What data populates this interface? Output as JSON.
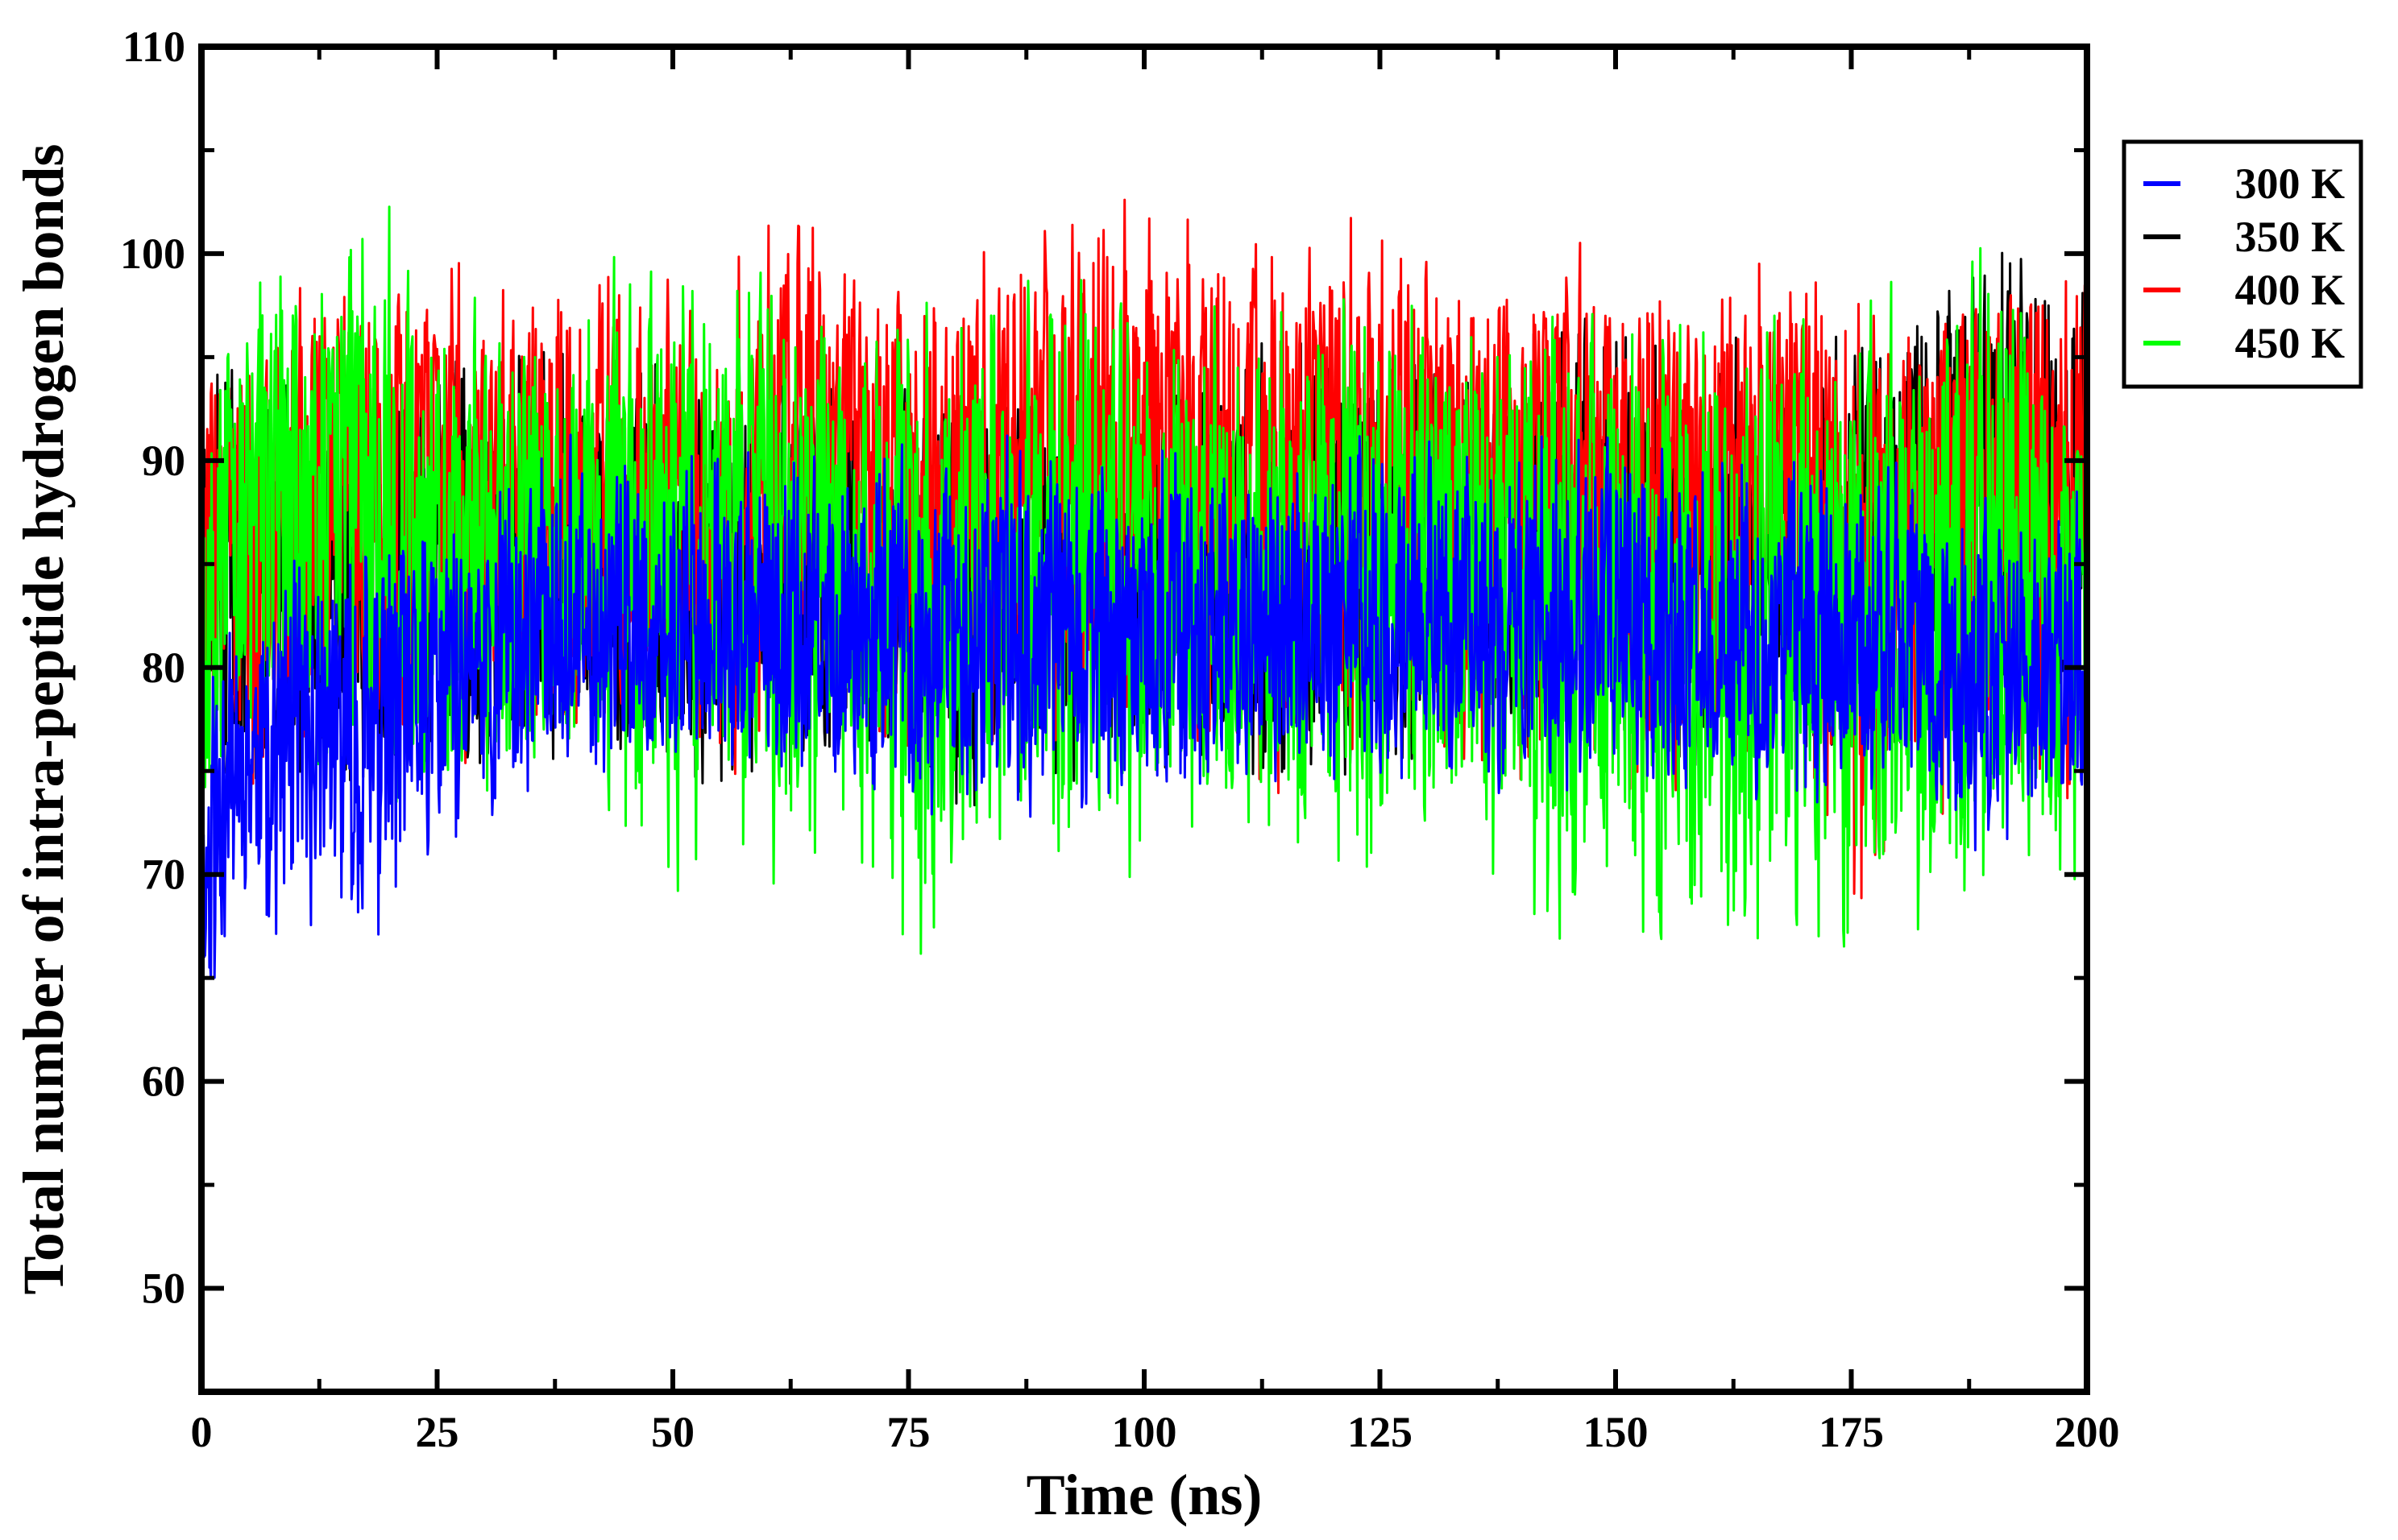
{
  "chart_data": {
    "type": "line",
    "xlabel": "Time (ns)",
    "ylabel": "Total number of intra-peptide hydrogen bonds",
    "xlim": [
      0,
      200
    ],
    "ylim": [
      45,
      110
    ],
    "x_ticks": [
      0,
      25,
      50,
      75,
      100,
      125,
      150,
      175,
      200
    ],
    "y_ticks": [
      50,
      60,
      70,
      80,
      90,
      100,
      110
    ],
    "grid": false,
    "legend": "right",
    "legend_entries": [
      "300 K",
      "350 K",
      "400 K",
      "450 K"
    ],
    "series": [
      {
        "name": "300 K",
        "color": "#0000ff",
        "x": [
          0,
          1,
          2,
          5,
          10,
          15,
          20,
          25,
          30,
          35,
          40,
          50,
          60,
          75,
          90,
          100,
          110,
          125,
          140,
          150,
          160,
          175,
          190,
          200
        ],
        "mean": [
          68,
          72,
          75,
          76,
          77,
          77,
          77,
          79,
          80,
          81,
          81,
          81,
          81,
          81,
          81,
          81,
          81,
          81,
          81,
          81,
          81,
          81,
          80,
          80
        ],
        "min": [
          58,
          61,
          64,
          66,
          66,
          67,
          64,
          69,
          71,
          73,
          74,
          74,
          74,
          72,
          71,
          72,
          73,
          74,
          73,
          74,
          72,
          72,
          70,
          72
        ],
        "max": [
          78,
          80,
          82,
          84,
          86,
          88,
          88,
          89,
          90,
          91,
          92,
          92,
          92,
          92,
          92,
          92,
          92,
          92,
          92,
          94,
          92,
          92,
          90,
          90
        ]
      },
      {
        "name": "350 K",
        "color": "#000000",
        "x": [
          0,
          10,
          25,
          50,
          75,
          100,
          125,
          140,
          150,
          160,
          175,
          180,
          185,
          190,
          195,
          200
        ],
        "mean": [
          84,
          85,
          85,
          85,
          85,
          85,
          85,
          86,
          86,
          85,
          86,
          88,
          90,
          90,
          89,
          87
        ],
        "min": [
          70,
          72,
          72,
          73,
          72,
          73,
          73,
          74,
          74,
          73,
          72,
          72,
          73,
          74,
          74,
          73
        ],
        "max": [
          96,
          97,
          97,
          97,
          97,
          97,
          97,
          98,
          98,
          97,
          97,
          99,
          100,
          104,
          101,
          100
        ]
      },
      {
        "name": "400 K",
        "color": "#ff0000",
        "x": [
          0,
          10,
          20,
          25,
          50,
          60,
          65,
          75,
          90,
          100,
          110,
          120,
          130,
          150,
          160,
          165,
          170,
          176,
          180,
          190,
          195,
          200
        ],
        "mean": [
          86,
          88,
          90,
          89,
          88,
          90,
          92,
          91,
          91,
          92,
          91,
          92,
          90,
          90,
          89,
          91,
          89,
          87,
          88,
          90,
          92,
          90
        ],
        "min": [
          71,
          72,
          74,
          74,
          74,
          73,
          74,
          73,
          73,
          73,
          73,
          73,
          73,
          72,
          72,
          72,
          70,
          61,
          70,
          71,
          72,
          69
        ],
        "max": [
          97,
          100,
          102,
          101,
          100,
          103,
          104,
          101,
          102,
          105,
          102,
          104,
          101,
          101,
          100,
          103,
          100,
          99,
          99,
          101,
          102,
          100
        ]
      },
      {
        "name": "450 K",
        "color": "#00ff00",
        "x": [
          0,
          2,
          5,
          10,
          15,
          20,
          25,
          30,
          40,
          50,
          60,
          70,
          74,
          80,
          90,
          100,
          110,
          125,
          140,
          143,
          150,
          160,
          175,
          190,
          200
        ],
        "mean": [
          86,
          88,
          89,
          90,
          90,
          88,
          87,
          86,
          86,
          86,
          86,
          85,
          85,
          85,
          85,
          85,
          85,
          85,
          85,
          84,
          84,
          84,
          84,
          84,
          82
        ],
        "min": [
          64,
          70,
          72,
          72,
          72,
          72,
          70,
          70,
          69,
          68,
          68,
          68,
          60,
          69,
          69,
          67,
          69,
          66,
          66,
          63,
          66,
          64,
          64,
          65,
          67
        ],
        "max": [
          94,
          99,
          101,
          100,
          103,
          104,
          98,
          99,
          100,
          102,
          100,
          98,
          99,
          101,
          100,
          99,
          99,
          101,
          99,
          98,
          99,
          99,
          99,
          102,
          96
        ]
      }
    ]
  }
}
